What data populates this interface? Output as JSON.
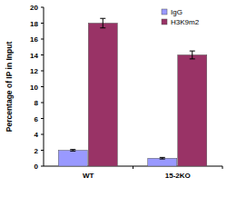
{
  "chart_data": {
    "type": "bar",
    "y_label": "Percentage of IP in Input",
    "categories": [
      "WT",
      "15-2KO"
    ],
    "series": [
      {
        "name": "IgG",
        "color": "#9999ff",
        "values": [
          2.0,
          1.0
        ],
        "errors": [
          0.1,
          0.1
        ]
      },
      {
        "name": "H3K9m2",
        "color": "#993366",
        "values": [
          18.0,
          14.0
        ],
        "errors": [
          0.6,
          0.5
        ]
      }
    ],
    "ylim": [
      0,
      20
    ],
    "yticks": [
      0,
      2,
      4,
      6,
      8,
      10,
      12,
      14,
      16,
      18,
      20
    ],
    "grid": false,
    "legend": "top-right"
  }
}
